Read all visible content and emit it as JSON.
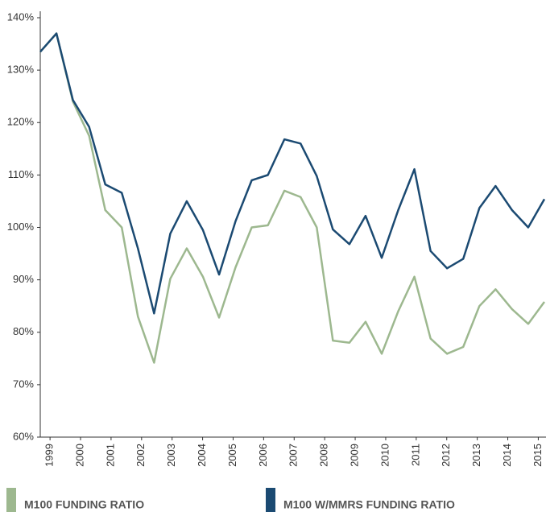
{
  "chart_data": {
    "type": "line",
    "x": [
      1998.68,
      1999.21,
      1999.75,
      2000.28,
      2000.81,
      2001.35,
      2001.88,
      2002.41,
      2002.94,
      2003.48,
      2004.01,
      2004.54,
      2005.08,
      2005.61,
      2006.14,
      2006.68,
      2007.21,
      2007.74,
      2008.27,
      2008.81,
      2009.34,
      2009.87,
      2010.41,
      2010.94,
      2011.47,
      2012.01,
      2012.54,
      2013.07,
      2013.6,
      2014.14,
      2014.67,
      2015.2
    ],
    "series": [
      {
        "name": "M100 FUNDING RATIO",
        "color": "#9db88f",
        "values": [
          133.5,
          137,
          124,
          117.5,
          103.3,
          100,
          83,
          74.2,
          90.2,
          96,
          90.6,
          82.8,
          92.4,
          100,
          100.4,
          107,
          105.8,
          100,
          78.4,
          78,
          82,
          75.9,
          84,
          90.6,
          78.8,
          75.9,
          77.2,
          85,
          88.2,
          84.4,
          81.6,
          85.8
        ]
      },
      {
        "name": "M100 W/MMRS FUNDING RATIO",
        "color": "#1b4a72",
        "values": [
          133.5,
          137,
          124.3,
          119.2,
          108.2,
          106.6,
          96,
          83.6,
          98.8,
          105,
          99.5,
          91,
          101.2,
          109,
          110,
          116.8,
          116,
          109.8,
          99.6,
          96.8,
          102.2,
          94.2,
          103.3,
          111.1,
          95.5,
          92.2,
          94,
          103.7,
          107.9,
          103.3,
          100,
          105.4
        ]
      }
    ],
    "xlim": [
      1998.68,
      2015.2
    ],
    "xticks": [
      1999,
      2000,
      2001,
      2002,
      2003,
      2004,
      2005,
      2006,
      2007,
      2008,
      2009,
      2010,
      2011,
      2012,
      2013,
      2014,
      2015
    ],
    "ylim": [
      60,
      140
    ],
    "yticks": [
      {
        "value": 60,
        "label": "60%"
      },
      {
        "value": 70,
        "label": "70%"
      },
      {
        "value": 80,
        "label": "80%"
      },
      {
        "value": 90,
        "label": "90%"
      },
      {
        "value": 100,
        "label": "100%"
      },
      {
        "value": 110,
        "label": "110%"
      },
      {
        "value": 120,
        "label": "120%"
      },
      {
        "value": 130,
        "label": "130%"
      },
      {
        "value": 140,
        "label": "140%"
      }
    ],
    "grid": false,
    "legend": "bottom"
  }
}
